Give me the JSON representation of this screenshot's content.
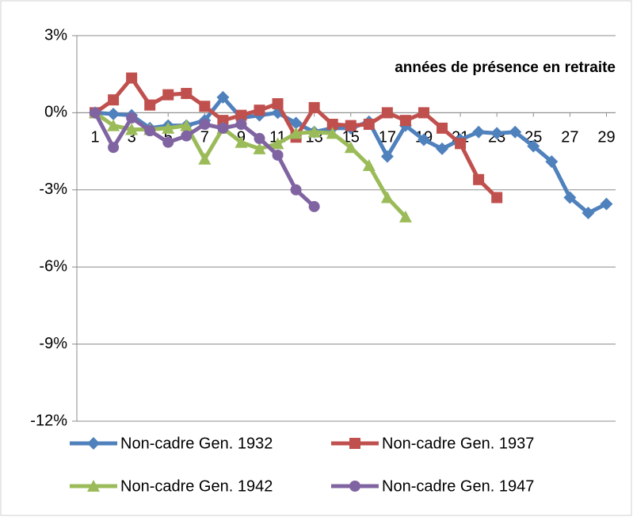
{
  "chart_data": {
    "type": "line",
    "annotation": "années de présence en retraite",
    "x": [
      1,
      2,
      3,
      4,
      5,
      6,
      7,
      8,
      9,
      10,
      11,
      12,
      13,
      14,
      15,
      16,
      17,
      18,
      19,
      20,
      21,
      22,
      23,
      24,
      25,
      26,
      27,
      28,
      29
    ],
    "xlim": [
      0,
      29.5
    ],
    "xticks": [
      1,
      3,
      5,
      7,
      9,
      11,
      13,
      15,
      17,
      19,
      21,
      23,
      25,
      27,
      29
    ],
    "ylim": [
      -12,
      3
    ],
    "yticks": [
      {
        "value": -12,
        "label": "-12%"
      },
      {
        "value": -9,
        "label": "-9%"
      },
      {
        "value": -6,
        "label": "-6%"
      },
      {
        "value": -3,
        "label": "-3%"
      },
      {
        "value": 0,
        "label": "0%"
      },
      {
        "value": 3,
        "label": "3%"
      }
    ],
    "grid": true,
    "legend": "bottom",
    "series": [
      {
        "name": "Non-cadre Gen. 1932",
        "color": "#4f81bd",
        "marker": "diamond",
        "values": [
          0,
          -0.05,
          -0.1,
          -0.6,
          -0.5,
          -0.5,
          -0.3,
          0.6,
          -0.2,
          -0.1,
          0,
          -0.4,
          -0.75,
          -0.6,
          -0.6,
          -0.35,
          -1.7,
          -0.5,
          -1.05,
          -1.4,
          -1.05,
          -0.75,
          -0.8,
          -0.75,
          -1.3,
          -1.9,
          -3.3,
          -3.9,
          -3.55
        ]
      },
      {
        "name": "Non-cadre Gen. 1937",
        "color": "#c0504d",
        "marker": "square",
        "values": [
          0,
          0.5,
          1.35,
          0.3,
          0.7,
          0.75,
          0.25,
          -0.3,
          -0.1,
          0.1,
          0.35,
          -0.95,
          0.2,
          -0.45,
          -0.5,
          -0.45,
          0,
          -0.3,
          0,
          -0.6,
          -1.2,
          -2.6,
          -3.3,
          null,
          null,
          null,
          null,
          null,
          null
        ]
      },
      {
        "name": "Non-cadre Gen. 1942",
        "color": "#9bbb59",
        "marker": "triangle",
        "values": [
          0,
          -0.5,
          -0.65,
          -0.65,
          -0.6,
          -0.5,
          -1.8,
          -0.6,
          -1.15,
          -1.4,
          -1.2,
          -0.8,
          -0.75,
          -0.8,
          -1.35,
          -2.05,
          -3.3,
          -4.05,
          null,
          null,
          null,
          null,
          null,
          null,
          null,
          null,
          null,
          null,
          null
        ]
      },
      {
        "name": "Non-cadre Gen. 1947",
        "color": "#8064a2",
        "marker": "circle",
        "values": [
          0,
          -1.35,
          -0.2,
          -0.7,
          -1.15,
          -0.9,
          -0.45,
          -0.6,
          -0.45,
          -1.0,
          -1.65,
          -3.0,
          -3.65,
          null,
          null,
          null,
          null,
          null,
          null,
          null,
          null,
          null,
          null,
          null,
          null,
          null,
          null,
          null,
          null
        ]
      }
    ]
  }
}
